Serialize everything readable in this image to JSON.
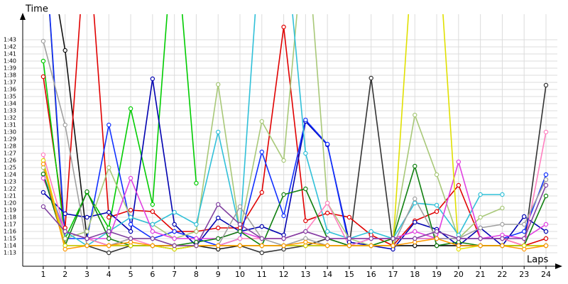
{
  "chart_data": {
    "type": "line",
    "y_label": "Time",
    "x_label": "Laps",
    "x": [
      1,
      2,
      3,
      4,
      5,
      6,
      7,
      8,
      9,
      10,
      11,
      12,
      13,
      14,
      15,
      16,
      17,
      18,
      19,
      20,
      21,
      22,
      23,
      24
    ],
    "xlim": [
      0.06,
      24.52
    ],
    "xticks": [
      1,
      2,
      3,
      4,
      5,
      6,
      7,
      8,
      9,
      10,
      11,
      12,
      13,
      14,
      15,
      16,
      17,
      18,
      19,
      20,
      21,
      22,
      23,
      24
    ],
    "ylim": [
      71.1,
      106.6
    ],
    "yticks": [
      {
        "value": 73,
        "label": "1:13"
      },
      {
        "value": 74,
        "label": "1:14"
      },
      {
        "value": 75,
        "label": "1:15"
      },
      {
        "value": 76,
        "label": "1:16"
      },
      {
        "value": 77,
        "label": "1:17"
      },
      {
        "value": 78,
        "label": "1:18"
      },
      {
        "value": 79,
        "label": "1:19"
      },
      {
        "value": 80,
        "label": "1:20"
      },
      {
        "value": 81,
        "label": "1:21"
      },
      {
        "value": 82,
        "label": "1:22"
      },
      {
        "value": 83,
        "label": "1:23"
      },
      {
        "value": 84,
        "label": "1:24"
      },
      {
        "value": 85,
        "label": "1:25"
      },
      {
        "value": 86,
        "label": "1:26"
      },
      {
        "value": 87,
        "label": "1:27"
      },
      {
        "value": 88,
        "label": "1:28"
      },
      {
        "value": 89,
        "label": "1:29"
      },
      {
        "value": 90,
        "label": "1:30"
      },
      {
        "value": 91,
        "label": "1:31"
      },
      {
        "value": 92,
        "label": "1:32"
      },
      {
        "value": 93,
        "label": "1:33"
      },
      {
        "value": 94,
        "label": "1:34"
      },
      {
        "value": 95,
        "label": "1:35"
      },
      {
        "value": 96,
        "label": "1:36"
      },
      {
        "value": 97,
        "label": "1:37"
      },
      {
        "value": 98,
        "label": "1:38"
      },
      {
        "value": 99,
        "label": "1:39"
      },
      {
        "value": 100,
        "label": "1:40"
      },
      {
        "value": 101,
        "label": "1:41"
      },
      {
        "value": 102,
        "label": "1:42"
      },
      {
        "value": 103,
        "label": "1:43"
      }
    ],
    "grid": true,
    "series": [
      {
        "color": "#333333",
        "values": [
          120,
          74,
          74,
          73,
          74,
          74,
          73.5,
          74,
          74,
          74,
          73,
          73.5,
          74,
          75,
          74,
          97.6,
          74,
          74,
          74,
          74,
          74,
          74,
          74,
          96.6
        ]
      },
      {
        "color": "#111111",
        "values": [
          120,
          101.5,
          75,
          74,
          74,
          74,
          74,
          74,
          73.5,
          74,
          74,
          74,
          74,
          74,
          74,
          74,
          74,
          74,
          74,
          74,
          74,
          74,
          74,
          74
        ]
      },
      {
        "color": "#e00000",
        "values": [
          97.8,
          76.5,
          120,
          78,
          79,
          78.8,
          76,
          76,
          76.5,
          76.5,
          81.5,
          104.8,
          77.5,
          78.6,
          78,
          75.5,
          74,
          77.5,
          78.8,
          82.5,
          75,
          75,
          74,
          75
        ]
      },
      {
        "color": "#00cc00",
        "values": [
          100,
          75,
          81.5,
          76.5,
          93.3,
          79.8,
          120,
          82.8,
          null,
          null,
          null,
          null,
          null,
          null,
          null,
          null,
          null,
          null,
          null,
          null,
          null,
          null,
          null,
          null
        ]
      },
      {
        "color": "#0000b0",
        "values": [
          81.5,
          78.5,
          78,
          78.7,
          76,
          97.5,
          77,
          74,
          77.9,
          76,
          76.7,
          75.5,
          91.5,
          88.2,
          74.5,
          74,
          73.5,
          77.3,
          76.3,
          74,
          76.5,
          74,
          78.1,
          76
        ]
      },
      {
        "color": "#1030ff",
        "values": [
          120,
          75,
          75,
          91,
          77,
          75,
          76,
          75,
          74,
          75,
          87.2,
          78.2,
          91.7,
          88.3,
          74,
          75,
          75,
          75,
          75,
          75,
          75,
          75,
          76,
          84
        ]
      },
      {
        "color": "#a8c878",
        "values": [
          85,
          75,
          76,
          85,
          78,
          77,
          75,
          76,
          96.7,
          76,
          91.5,
          86,
          120,
          80,
          75,
          74,
          75,
          92.4,
          84,
          75,
          78,
          79.3,
          null,
          null
        ]
      },
      {
        "color": "#30c0d8",
        "values": [
          84,
          76,
          74,
          76,
          78,
          77,
          78.7,
          77,
          90,
          76,
          120,
          120,
          87,
          76,
          75,
          76,
          75,
          80,
          79.7,
          75.5,
          81.2,
          81.2,
          null,
          null
        ]
      },
      {
        "color": "#e040e0",
        "values": [
          83.5,
          76,
          75,
          75,
          83.5,
          76,
          75,
          75,
          75,
          76,
          75,
          75,
          76,
          75,
          75,
          75,
          75,
          76,
          75,
          85.8,
          75,
          75.5,
          75,
          77
        ]
      },
      {
        "color": "#ff80c0",
        "values": [
          86.8,
          76,
          75,
          74,
          75,
          74,
          74,
          74,
          74,
          75,
          75,
          75,
          76,
          80,
          74,
          75,
          75,
          75,
          75,
          75,
          75,
          75,
          74,
          90
        ]
      },
      {
        "color": "#108010",
        "values": [
          84.1,
          74,
          81.6,
          75,
          74,
          74,
          74,
          74.5,
          75,
          76,
          74,
          81.2,
          82,
          75,
          74,
          74,
          75,
          85.2,
          74,
          74.5,
          74,
          74,
          74,
          81
        ]
      },
      {
        "color": "#a0a0a0",
        "values": [
          102.8,
          91,
          74,
          74,
          75,
          75,
          74,
          74,
          74,
          79.5,
          75,
          74,
          75,
          74,
          74,
          74,
          74,
          80.6,
          75,
          75,
          76.5,
          77,
          77,
          83.3
        ]
      },
      {
        "color": "#e0e000",
        "values": [
          86,
          74,
          74,
          74,
          74,
          74,
          73.5,
          74,
          74,
          74,
          74,
          74,
          74,
          74,
          74,
          74,
          74,
          120,
          120,
          73.5,
          74,
          74,
          74,
          74
        ]
      },
      {
        "color": "#ff9900",
        "values": [
          85.5,
          73.5,
          74,
          74,
          74.5,
          74,
          74,
          74,
          74,
          74,
          74,
          74,
          74.5,
          74,
          74,
          74,
          74,
          74.5,
          75,
          74,
          74,
          74,
          73.5,
          74
        ]
      },
      {
        "color": "#8040a0",
        "values": [
          79.5,
          76,
          75,
          76,
          75,
          75,
          74,
          74,
          79.8,
          77,
          75,
          75,
          76,
          75,
          75,
          75,
          75,
          75,
          76,
          75,
          75,
          75,
          75,
          82.5
        ]
      }
    ]
  }
}
